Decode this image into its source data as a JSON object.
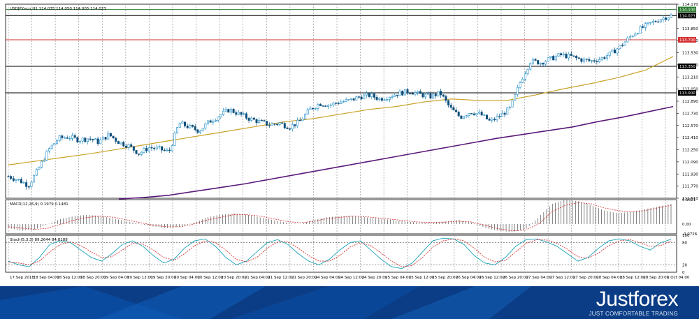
{
  "chart_data": [
    {
      "type": "candlestick",
      "title": "USDJPY.ecn,H1 114.035 114.050 114.005 114.023",
      "y_ticks": [
        "114.170",
        "113.850",
        "113.690",
        "113.530",
        "113.370",
        "113.210",
        "113.050",
        "112.890",
        "112.730",
        "112.570",
        "112.410",
        "112.250",
        "112.090",
        "111.930",
        "111.770",
        "111.610"
      ],
      "ylim": [
        111.61,
        114.17
      ],
      "x_ticks": [
        "17 Sep 2018",
        "18 Sep 04:00",
        "18 Sep 12:00",
        "18 Sep 20:00",
        "19 Sep 04:00",
        "19 Sep 12:00",
        "19 Sep 20:00",
        "20 Sep 04:00",
        "20 Sep 12:00",
        "20 Sep 20:00",
        "21 Sep 04:00",
        "21 Sep 12:00",
        "21 Sep 20:00",
        "24 Sep 04:00",
        "24 Sep 12:00",
        "24 Sep 20:00",
        "25 Sep 04:00",
        "25 Sep 12:00",
        "25 Sep 20:00",
        "26 Sep 04:00",
        "26 Sep 12:00",
        "26 Sep 20:00",
        "27 Sep 04:00",
        "27 Sep 12:00",
        "27 Sep 20:00",
        "28 Sep 04:00",
        "28 Sep 12:00",
        "28 Sep 20:00",
        "1 Oct 04:00"
      ],
      "horizontal_levels": [
        {
          "value": 114.1,
          "label": "114.100",
          "color": "#2e7d32"
        },
        {
          "value": 114.02,
          "label": "114.023",
          "color": "#000000"
        },
        {
          "value": 113.7,
          "label": "113.700",
          "color": "#d32f2f"
        },
        {
          "value": 113.35,
          "label": "113.350",
          "color": "#000000"
        },
        {
          "value": 113.0,
          "label": "113.000",
          "color": "#000000"
        }
      ],
      "price_path": [
        111.9,
        111.85,
        111.78,
        112.0,
        112.25,
        112.4,
        112.42,
        112.38,
        112.4,
        112.35,
        112.45,
        112.35,
        112.3,
        112.2,
        112.28,
        112.26,
        112.22,
        112.6,
        112.55,
        112.5,
        112.62,
        112.7,
        112.78,
        112.72,
        112.66,
        112.62,
        112.58,
        112.6,
        112.55,
        112.62,
        112.78,
        112.86,
        112.84,
        112.88,
        112.9,
        112.95,
        112.97,
        112.92,
        112.96,
        113.0,
        113.02,
        112.98,
        112.95,
        113.0,
        112.8,
        112.68,
        112.75,
        112.72,
        112.62,
        112.7,
        112.8,
        113.15,
        113.42,
        113.4,
        113.45,
        113.5,
        113.48,
        113.44,
        113.42,
        113.45,
        113.52,
        113.62,
        113.75,
        113.85,
        113.92,
        113.98,
        114.02
      ],
      "ma_slow": {
        "color": "#5b1a7a",
        "values": [
          111.6,
          111.62,
          111.65,
          111.7,
          111.75,
          111.8,
          111.86,
          111.92,
          111.98,
          112.04,
          112.1,
          112.16,
          112.22,
          112.28,
          112.34,
          112.4,
          112.45,
          112.5,
          112.55,
          112.62,
          112.68,
          112.75,
          112.82
        ]
      },
      "ma_fast": {
        "color": "#c9a227",
        "values": [
          112.05,
          112.1,
          112.15,
          112.2,
          112.26,
          112.32,
          112.38,
          112.44,
          112.5,
          112.56,
          112.62,
          112.66,
          112.72,
          112.78,
          112.82,
          112.88,
          112.92,
          112.9,
          112.9,
          112.97,
          113.05,
          113.12,
          113.2,
          113.3,
          113.48
        ]
      },
      "bull_color": "#1f8dc7",
      "bear_color": "#0d4f7c"
    },
    {
      "type": "histogram",
      "title": "MACD(12,26,9) 0.1979 0.1481",
      "y_ticks": [
        "0.1821",
        "0.00",
        "-0.0726"
      ],
      "ylim": [
        -0.0726,
        0.1821
      ],
      "values": [
        -0.03,
        -0.05,
        -0.04,
        0.0,
        0.04,
        0.06,
        0.07,
        0.06,
        0.04,
        0.02,
        0.0,
        -0.02,
        -0.03,
        -0.02,
        0.01,
        0.05,
        0.07,
        0.08,
        0.07,
        0.05,
        0.03,
        0.01,
        0.0,
        0.03,
        0.05,
        0.06,
        0.06,
        0.05,
        0.04,
        0.03,
        0.02,
        0.01,
        0.01,
        0.02,
        0.03,
        0.01,
        -0.03,
        -0.05,
        -0.06,
        -0.04,
        0.05,
        0.15,
        0.18,
        0.17,
        0.14,
        0.1,
        0.08,
        0.09,
        0.11,
        0.13,
        0.15
      ],
      "signal": {
        "color": "#d32f2f",
        "values": [
          -0.02,
          -0.03,
          -0.04,
          -0.03,
          0.0,
          0.03,
          0.05,
          0.06,
          0.05,
          0.03,
          0.01,
          -0.01,
          -0.02,
          -0.02,
          0.0,
          0.03,
          0.05,
          0.07,
          0.07,
          0.06,
          0.04,
          0.02,
          0.01,
          0.02,
          0.04,
          0.05,
          0.06,
          0.055,
          0.045,
          0.035,
          0.025,
          0.015,
          0.012,
          0.015,
          0.022,
          0.015,
          -0.01,
          -0.035,
          -0.05,
          -0.045,
          0.0,
          0.09,
          0.14,
          0.16,
          0.15,
          0.12,
          0.1,
          0.09,
          0.1,
          0.12,
          0.14
        ]
      }
    },
    {
      "type": "line",
      "title": "Stoch(5,3,3) 89.2644 84.8188",
      "y_ticks": [
        "100",
        "80",
        "20",
        "0"
      ],
      "ylim": [
        0,
        100
      ],
      "levels": [
        80,
        20
      ],
      "series": [
        {
          "color": "#1aa3b8",
          "values": [
            30,
            20,
            15,
            40,
            75,
            85,
            80,
            60,
            40,
            30,
            50,
            75,
            85,
            70,
            45,
            25,
            35,
            65,
            85,
            90,
            70,
            40,
            20,
            30,
            55,
            80,
            88,
            75,
            50,
            30,
            20,
            35,
            60,
            80,
            85,
            60,
            35,
            15,
            10,
            25,
            55,
            85,
            92,
            90,
            75,
            45,
            25,
            20,
            40,
            70,
            88,
            90,
            82,
            70,
            50,
            30,
            40,
            65,
            85,
            90,
            85,
            70,
            60,
            80,
            89
          ]
        },
        {
          "color": "#d32f2f",
          "values": [
            28,
            25,
            20,
            30,
            55,
            75,
            82,
            72,
            55,
            40,
            42,
            60,
            78,
            76,
            60,
            40,
            32,
            50,
            72,
            85,
            80,
            60,
            35,
            28,
            40,
            65,
            82,
            82,
            65,
            45,
            30,
            30,
            45,
            68,
            80,
            72,
            52,
            30,
            15,
            18,
            40,
            68,
            85,
            90,
            85,
            65,
            40,
            28,
            32,
            55,
            78,
            88,
            87,
            78,
            62,
            42,
            38,
            52,
            72,
            85,
            88,
            80,
            70,
            72,
            85
          ]
        }
      ]
    }
  ],
  "brand": {
    "name": "Justforex",
    "tagline": "JUST COMFORTABLE TRADING"
  }
}
